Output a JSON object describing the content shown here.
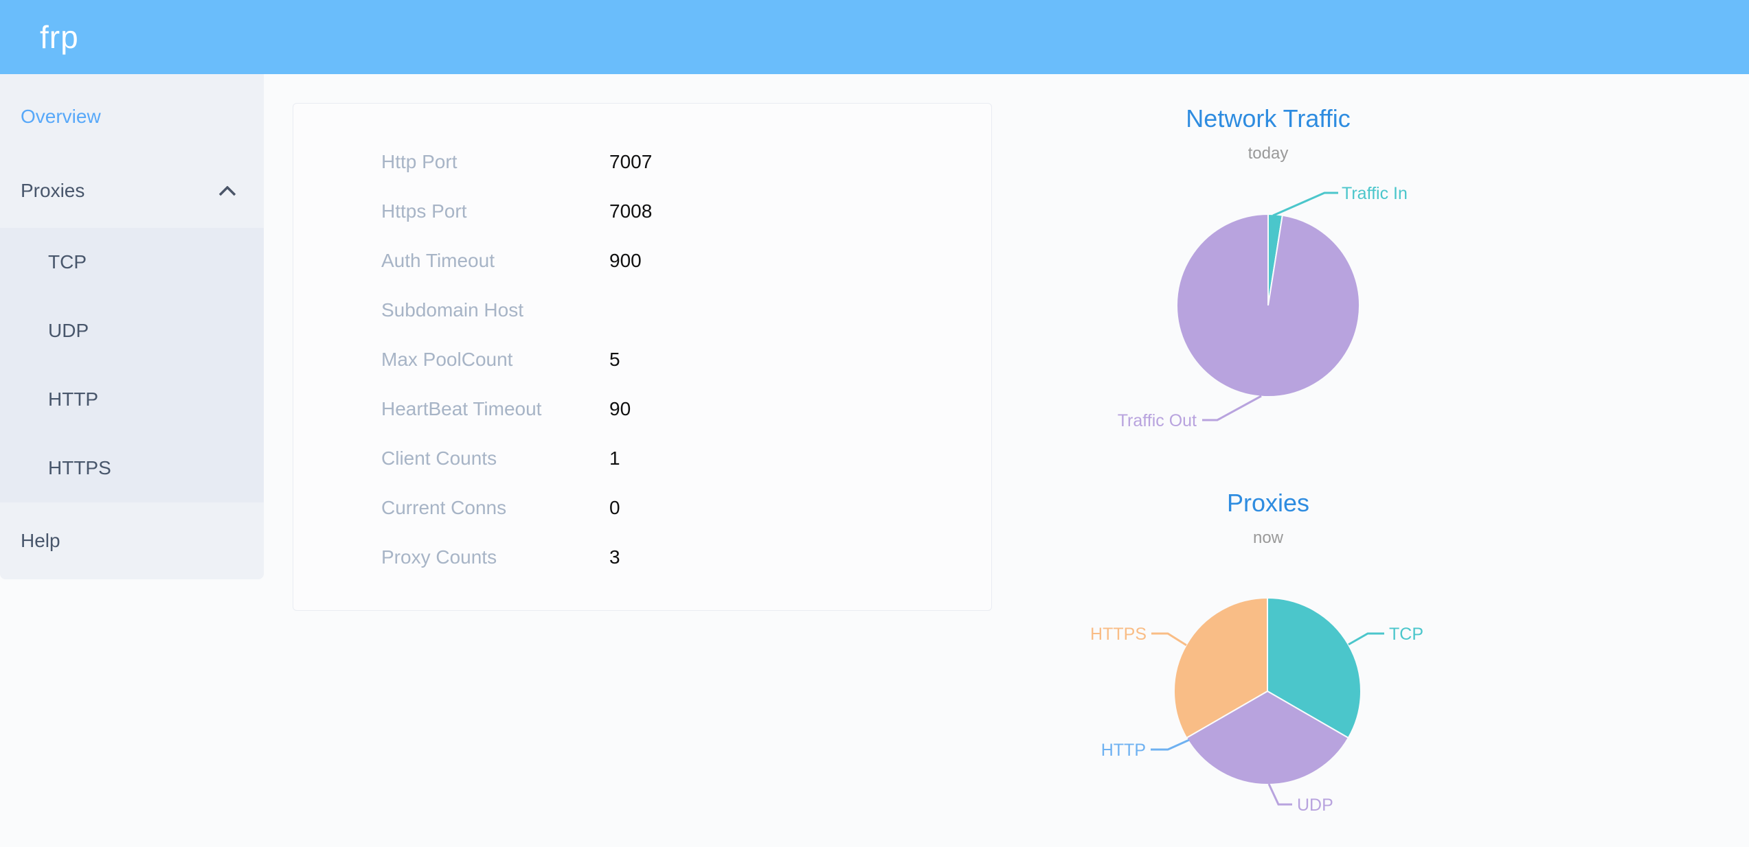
{
  "app": {
    "logo_text": "frp"
  },
  "sidebar": {
    "items": [
      {
        "label": "Overview",
        "state": "active"
      },
      {
        "label": "Proxies",
        "state": "expanded",
        "children": [
          {
            "label": "TCP"
          },
          {
            "label": "UDP"
          },
          {
            "label": "HTTP"
          },
          {
            "label": "HTTPS"
          }
        ]
      },
      {
        "label": "Help",
        "state": "normal"
      }
    ]
  },
  "server_info": {
    "rows": [
      {
        "label": "Http Port",
        "value": "7007"
      },
      {
        "label": "Https Port",
        "value": "7008"
      },
      {
        "label": "Auth Timeout",
        "value": "900"
      },
      {
        "label": "Subdomain Host",
        "value": ""
      },
      {
        "label": "Max PoolCount",
        "value": "5"
      },
      {
        "label": "HeartBeat Timeout",
        "value": "90"
      },
      {
        "label": "Client Counts",
        "value": "1"
      },
      {
        "label": "Current Conns",
        "value": "0"
      },
      {
        "label": "Proxy Counts",
        "value": "3"
      }
    ]
  },
  "chart_data": [
    {
      "type": "pie",
      "title": "Network Traffic",
      "subtitle": "today",
      "start_angle": "top",
      "direction": "clockwise",
      "legend": "none",
      "labels": "outside-with-leader-lines",
      "value_unit": "share of traffic, percent (estimated from arc angles)",
      "slices": [
        {
          "label": "Traffic In",
          "value": 2.5,
          "color": "#4bc6cb"
        },
        {
          "label": "Traffic Out",
          "value": 97.5,
          "color": "#b8a3de"
        }
      ]
    },
    {
      "type": "pie",
      "title": "Proxies",
      "subtitle": "now",
      "start_angle": "top",
      "direction": "clockwise",
      "legend": "none",
      "labels": "outside-with-leader-lines",
      "value_unit": "proxy count",
      "slices": [
        {
          "label": "TCP",
          "value": 1,
          "color": "#4bc6cb"
        },
        {
          "label": "UDP",
          "value": 1,
          "color": "#b8a3de"
        },
        {
          "label": "HTTP",
          "value": 0,
          "color": "#6eb1f1"
        },
        {
          "label": "HTTPS",
          "value": 1,
          "color": "#f9bd86"
        }
      ]
    }
  ],
  "colors": {
    "header_blue": "#6abdfb",
    "sidebar_bg": "#eef1f6",
    "submenu_bg": "#e7ebf3",
    "sidebar_text": "#48566b",
    "sidebar_active_blue": "#57a8f9",
    "chart_title_blue": "#2e8ce0",
    "chart_subtitle_gray": "#999999",
    "pie_teal": "#4bc6cb",
    "pie_purple": "#b8a3de",
    "pie_orange": "#f9bd86",
    "pie_http_blue": "#6eb1f1",
    "card_label_gray": "#a7b4c6"
  }
}
